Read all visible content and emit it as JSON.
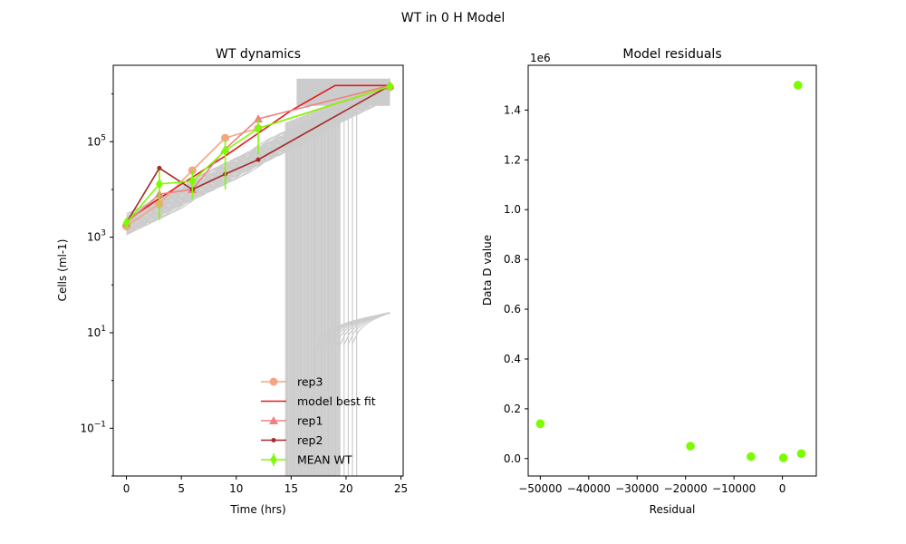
{
  "figure": {
    "title": "WT in 0 H Model"
  },
  "chart_data": [
    {
      "type": "line",
      "title": "WT dynamics",
      "xlabel": "Time (hrs)",
      "ylabel": "Cells (ml-1)",
      "xlim": [
        -1.2,
        25.2
      ],
      "ylim_log10": [
        -2.0,
        6.6
      ],
      "yscale": "log",
      "x_ticks": [
        0,
        5,
        10,
        15,
        20,
        25
      ],
      "x_tick_labels": [
        "0",
        "5",
        "10",
        "15",
        "20",
        "25"
      ],
      "y_ticks_log10": [
        -1,
        1,
        3,
        5
      ],
      "y_tick_labels": [
        {
          "base": "10",
          "exp": "−1"
        },
        {
          "base": "10",
          "exp": "1"
        },
        {
          "base": "10",
          "exp": "3"
        },
        {
          "base": "10",
          "exp": "5"
        }
      ],
      "legend_position": "lower-right",
      "grid": false,
      "simulation_band_color": "#cccccc",
      "series": [
        {
          "name": "rep3",
          "color": "#f4a582",
          "marker": "circle",
          "x": [
            0,
            3,
            6,
            9,
            12,
            24
          ],
          "y": [
            1700,
            5000,
            25000,
            120000,
            190000,
            1400000
          ]
        },
        {
          "name": " model best fit",
          "color": "#e41a1c",
          "marker": "none",
          "x": [
            0,
            3,
            6,
            9,
            12,
            15,
            19,
            24
          ],
          "y": [
            2200,
            6500,
            18000,
            50000,
            150000,
            450000,
            1500000,
            1500000
          ]
        },
        {
          "name": "rep1",
          "color": "#f08080",
          "marker": "triangle",
          "x": [
            0,
            3,
            6,
            9,
            12,
            24
          ],
          "y": [
            2000,
            8000,
            10000,
            70000,
            300000,
            1500000
          ]
        },
        {
          "name": "rep2",
          "color": "#a52a2a",
          "marker": "dot",
          "x": [
            0,
            3,
            6,
            9,
            12,
            24
          ],
          "y": [
            2000,
            28000,
            10000,
            21000,
            42000,
            1500000
          ]
        },
        {
          "name": "MEAN WT",
          "color": "#7cfc00",
          "marker": "diamond",
          "x": [
            0,
            3,
            6,
            9,
            12,
            24
          ],
          "y": [
            2000,
            13000,
            15000,
            65000,
            190000,
            1450000
          ],
          "err_low": [
            1700,
            2300,
            6500,
            10000,
            55000,
            1300000
          ],
          "err_high": [
            2400,
            25000,
            25000,
            110000,
            290000,
            1600000
          ]
        }
      ]
    },
    {
      "type": "scatter",
      "title": "Model residuals",
      "xlabel": "Residual",
      "ylabel": "Data D value",
      "offset_label": "1e6",
      "xlim": [
        -52500,
        7000
      ],
      "ylim": [
        -0.07,
        1.58
      ],
      "x_ticks": [
        -50000,
        -40000,
        -30000,
        -20000,
        -10000,
        0
      ],
      "x_tick_labels": [
        "−50000",
        "−40000",
        "−30000",
        "−20000",
        "−10000",
        "0"
      ],
      "y_ticks": [
        0.0,
        0.2,
        0.4,
        0.6,
        0.8,
        1.0,
        1.2,
        1.4
      ],
      "y_tick_labels": [
        "0.0",
        "0.2",
        "0.4",
        "0.6",
        "0.8",
        "1.0",
        "1.2",
        "1.4"
      ],
      "color": "#7cfc00",
      "points": [
        {
          "x": -50000,
          "y": 0.14
        },
        {
          "x": -19000,
          "y": 0.05
        },
        {
          "x": -6500,
          "y": 0.008
        },
        {
          "x": 200,
          "y": 0.003
        },
        {
          "x": 3200,
          "y": 1.5
        },
        {
          "x": 3900,
          "y": 0.02
        }
      ]
    }
  ]
}
